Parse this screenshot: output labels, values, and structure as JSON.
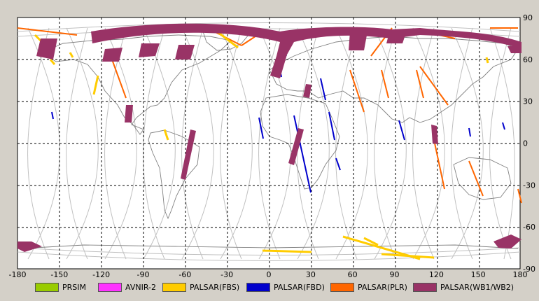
{
  "map": {
    "lon_ticks": [
      "-180",
      "-150",
      "-120",
      "-90",
      "-60",
      "-30",
      "0",
      "30",
      "60",
      "90",
      "120",
      "150",
      "180"
    ],
    "lat_ticks": [
      "90",
      "60",
      "30",
      "0",
      "-30",
      "-60",
      "-90"
    ],
    "colors": {
      "prism": "#99cc00",
      "avnir": "#ff33ff",
      "fbs": "#ffcc00",
      "fbd": "#0000cc",
      "plr": "#ff6600",
      "wb": "#993366"
    }
  },
  "legend": [
    {
      "label": "PRSIM",
      "color": "#99cc00"
    },
    {
      "label": "AVNIR-2",
      "color": "#ff33ff"
    },
    {
      "label": "PALSAR(FBS)",
      "color": "#ffcc00"
    },
    {
      "label": "PALSAR(FBD)",
      "color": "#0000cc"
    },
    {
      "label": "PALSAR(PLR)",
      "color": "#ff6600"
    },
    {
      "label": "PALSAR(WB1/WB2)",
      "color": "#993366"
    }
  ]
}
